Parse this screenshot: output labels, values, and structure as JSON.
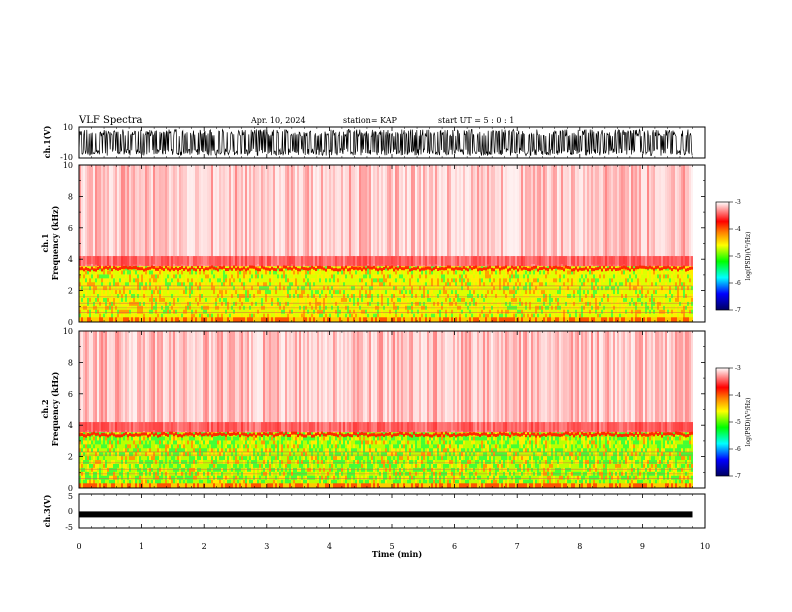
{
  "header": {
    "title": "VLF Spectra",
    "date": "Apr. 10, 2024",
    "station": "station= KAP",
    "start": "start  UT =  5 : 0  : 1"
  },
  "colors": {
    "low": "#00008b",
    "mid_low": "#00ff00",
    "mid": "#ffff00",
    "high": "#ff0000",
    "top": "#ffffff"
  },
  "chart_data": [
    {
      "type": "line",
      "name": "ch1-waveform",
      "ylabel": "ch.1(V)",
      "ylim": [
        -10,
        10
      ],
      "y_ticklabels": [
        "10",
        "-10"
      ],
      "x_range_min": [
        0,
        9.8
      ],
      "appearance": "dense noise waveform filling roughly -8 to 8 V"
    },
    {
      "type": "heatmap",
      "name": "ch1-spectrogram",
      "ylabel": "ch.1\nFrequency  (kHz)",
      "ylim": [
        0,
        10
      ],
      "y_ticklabels": [
        "0",
        "2",
        "4",
        "6",
        "8",
        "10"
      ],
      "colorbar": {
        "label": "log(PSD)(V²/Hz)",
        "range": [
          -7,
          -3
        ],
        "ticklabels": [
          "-3",
          "-4",
          "-5",
          "-6",
          "-7"
        ]
      },
      "bands": [
        {
          "from_khz": 3.5,
          "to_khz": 10,
          "level": -4.0
        },
        {
          "from_khz": 0.3,
          "to_khz": 3.3,
          "level": -4.7
        }
      ]
    },
    {
      "type": "heatmap",
      "name": "ch2-spectrogram",
      "ylabel": "ch.2\nFrequency  (kHz)",
      "ylim": [
        0,
        10
      ],
      "y_ticklabels": [
        "0",
        "2",
        "4",
        "6",
        "8",
        "10"
      ],
      "colorbar": {
        "label": "log(PSD)(V²/Hz)",
        "range": [
          -7,
          -3
        ],
        "ticklabels": [
          "-3",
          "-4",
          "-5",
          "-6",
          "-7"
        ]
      },
      "bands": [
        {
          "from_khz": 3.5,
          "to_khz": 10,
          "level": -4.0
        },
        {
          "from_khz": 0.3,
          "to_khz": 3.3,
          "level": -4.9
        }
      ]
    },
    {
      "type": "line",
      "name": "ch3-waveform",
      "ylabel": "ch.3(V)",
      "ylim": [
        -5,
        5
      ],
      "y_ticklabels": [
        "5",
        "0",
        "-5"
      ],
      "level": -1,
      "x_range_min": [
        0,
        9.8
      ]
    }
  ],
  "x_axis": {
    "label": "Time  (min)",
    "range": [
      0,
      10
    ],
    "ticklabels": [
      "0",
      "1",
      "2",
      "3",
      "4",
      "5",
      "6",
      "7",
      "8",
      "9",
      "10"
    ]
  }
}
